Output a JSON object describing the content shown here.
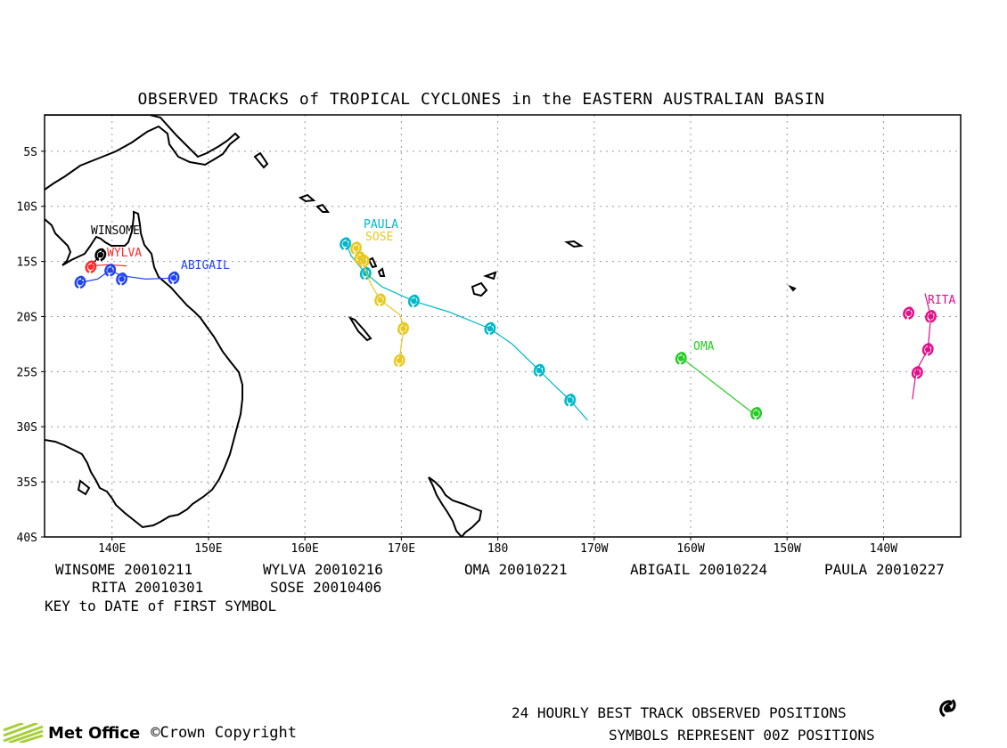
{
  "title": "OBSERVED TRACKS of TROPICAL CYCLONES in the EASTERN AUSTRALIAN BASIN",
  "axes": {
    "lat_labels": [
      "5S",
      "10S",
      "15S",
      "20S",
      "25S",
      "30S",
      "35S",
      "40S"
    ],
    "lon_labels": [
      "140E",
      "150E",
      "160E",
      "170E",
      "180",
      "170W",
      "160W",
      "150W",
      "140W"
    ]
  },
  "key": {
    "entries": [
      {
        "name": "WINSOME",
        "date": "20010211"
      },
      {
        "name": "WYLVA",
        "date": "20010216"
      },
      {
        "name": "OMA",
        "date": "20010221"
      },
      {
        "name": "ABIGAIL",
        "date": "20010224"
      },
      {
        "name": "PAULA",
        "date": "20010227"
      },
      {
        "name": "RITA",
        "date": "20010301"
      },
      {
        "name": "SOSE",
        "date": "20010406"
      }
    ],
    "note": "KEY to DATE of FIRST SYMBOL"
  },
  "legend": {
    "line1": "24 HOURLY BEST TRACK OBSERVED POSITIONS",
    "line2": "SYMBOLS REPRESENT 00Z POSITIONS"
  },
  "branding": {
    "org": "Met Office",
    "copyright": "©Crown Copyright"
  },
  "colors": {
    "WINSOME": "#000000",
    "WYLVA": "#ff2a2a",
    "ABIGAIL": "#2244ee",
    "PAULA": "#00b8c8",
    "SOSE": "#e8c822",
    "OMA": "#22cc22",
    "RITA": "#e0108a"
  },
  "storms": [
    {
      "name": "WINSOME",
      "label": "WINSOME",
      "track": [
        [
          138.8,
          -14.4
        ],
        [
          137.6,
          -15.6
        ]
      ],
      "positions": [
        [
          138.8,
          -14.4
        ]
      ]
    },
    {
      "name": "WYLVA",
      "label": "WYLVA",
      "track": [
        [
          137.8,
          -15.4
        ],
        [
          139.5,
          -15.3
        ],
        [
          141.5,
          -15.4
        ]
      ],
      "positions": [
        [
          137.8,
          -15.5
        ]
      ]
    },
    {
      "name": "ABIGAIL",
      "label": "ABIGAIL",
      "track": [
        [
          136.8,
          -16.9
        ],
        [
          138.5,
          -16.6
        ],
        [
          139.8,
          -15.8
        ],
        [
          141.0,
          -16.3
        ],
        [
          143.5,
          -16.6
        ],
        [
          146.5,
          -16.5
        ]
      ],
      "positions": [
        [
          136.7,
          -16.9
        ],
        [
          139.8,
          -15.8
        ],
        [
          141.0,
          -16.6
        ],
        [
          146.4,
          -16.5
        ]
      ]
    },
    {
      "name": "PAULA",
      "label": "PAULA",
      "track": [
        [
          164.2,
          -13.2
        ],
        [
          164.8,
          -14.5
        ],
        [
          166.2,
          -16.0
        ],
        [
          168.0,
          -17.3
        ],
        [
          171.3,
          -18.6
        ],
        [
          175.0,
          -19.6
        ],
        [
          179.2,
          -21.1
        ],
        [
          181.5,
          -22.5
        ],
        [
          184.2,
          -24.8
        ],
        [
          185.8,
          -26.2
        ],
        [
          187.5,
          -27.6
        ],
        [
          189.3,
          -29.4
        ]
      ],
      "positions": [
        [
          164.2,
          -13.4
        ],
        [
          166.3,
          -16.1
        ],
        [
          171.3,
          -18.6
        ],
        [
          179.2,
          -21.1
        ],
        [
          184.3,
          -24.9
        ],
        [
          187.5,
          -27.6
        ]
      ]
    },
    {
      "name": "SOSE",
      "label": "SOSE",
      "track": [
        [
          165.2,
          -13.9
        ],
        [
          166.0,
          -15.2
        ],
        [
          166.8,
          -17.0
        ],
        [
          167.8,
          -18.5
        ],
        [
          169.8,
          -19.8
        ],
        [
          170.3,
          -21.0
        ],
        [
          170.0,
          -22.5
        ],
        [
          169.8,
          -24.0
        ]
      ],
      "positions": [
        [
          165.3,
          -13.8
        ],
        [
          165.7,
          -14.7
        ],
        [
          166.1,
          -15.0
        ],
        [
          167.8,
          -18.5
        ],
        [
          170.2,
          -21.1
        ],
        [
          169.8,
          -24.0
        ]
      ]
    },
    {
      "name": "OMA",
      "label": "OMA",
      "track": [
        [
          199.0,
          -23.7
        ],
        [
          206.8,
          -29.0
        ]
      ],
      "positions": [
        [
          199.0,
          -23.8
        ],
        [
          206.8,
          -28.8
        ]
      ]
    },
    {
      "name": "RITA",
      "label": "RITA",
      "track": [
        [
          224.3,
          -17.9
        ],
        [
          224.9,
          -20.0
        ],
        [
          224.6,
          -23.0
        ],
        [
          223.4,
          -24.9
        ],
        [
          223.0,
          -27.5
        ]
      ],
      "positions": [
        [
          222.6,
          -19.7
        ],
        [
          224.9,
          -20.0
        ],
        [
          224.6,
          -23.0
        ],
        [
          223.5,
          -25.1
        ]
      ]
    }
  ]
}
